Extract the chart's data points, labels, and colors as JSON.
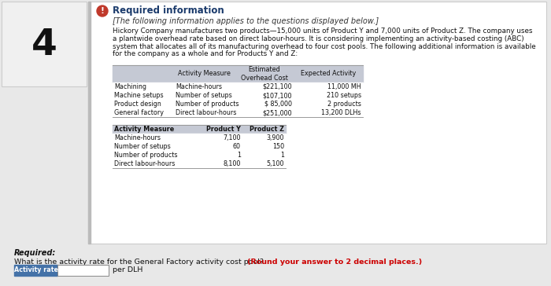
{
  "question_number": "4",
  "icon_color": "#c0392b",
  "icon_text": "!",
  "title": "Required information",
  "subtitle": "[The following information applies to the questions displayed below.]",
  "body_lines": [
    "Hickory Company manufactures two products—15,000 units of Product Y and 7,000 units of Product Z. The company uses",
    "a plantwide overhead rate based on direct labour-hours. It is considering implementing an activity-based costing (ABC)",
    "system that allocates all of its manufacturing overhead to four cost pools. The following additional information is available",
    "for the company as a whole and for Products Y and Z:"
  ],
  "table1_col0_label": "",
  "table1_header": [
    "Activity Measure",
    "Estimated\nOverhead Cost",
    "Expected Activity"
  ],
  "table1_rows": [
    [
      "Machining",
      "Machine-hours",
      "$221,100",
      "11,000 MH"
    ],
    [
      "Machine setups",
      "Number of setups",
      "$107,100",
      "210 setups"
    ],
    [
      "Product design",
      "Number of products",
      "$ 85,000",
      "2 products"
    ],
    [
      "General factory",
      "Direct labour-hours",
      "$251,000",
      "13,200 DLHs"
    ]
  ],
  "table2_header": [
    "Activity Measure",
    "Product Y",
    "Product Z"
  ],
  "table2_rows": [
    [
      "Machine-hours",
      "7,100",
      "3,900"
    ],
    [
      "Number of setups",
      "60",
      "150"
    ],
    [
      "Number of products",
      "1",
      "1"
    ],
    [
      "Direct labour-hours",
      "8,100",
      "5,100"
    ]
  ],
  "required_label": "Required:",
  "required_question": "What is the activity rate for the General Factory activity cost pool? ",
  "required_bold": "(Round your answer to 2 decimal places.)",
  "answer_label": "Activity rate",
  "answer_suffix": "per DLH",
  "main_bg": "#e8e8e8",
  "card_bg": "#ffffff",
  "card_border": "#cccccc",
  "num_bg": "#f0f0f0",
  "num_border": "#cccccc",
  "left_bar_color": "#bbbbbb",
  "title_color": "#1a3a6b",
  "table_hdr_bg": "#c5c9d4",
  "table_row_bg1": "#ffffff",
  "table_row_bg2": "#eeeeee",
  "answer_label_bg": "#4472a8",
  "answer_label_fg": "#ffffff",
  "red_text": "#cc0000",
  "body_color": "#111111",
  "sub_color": "#333333"
}
